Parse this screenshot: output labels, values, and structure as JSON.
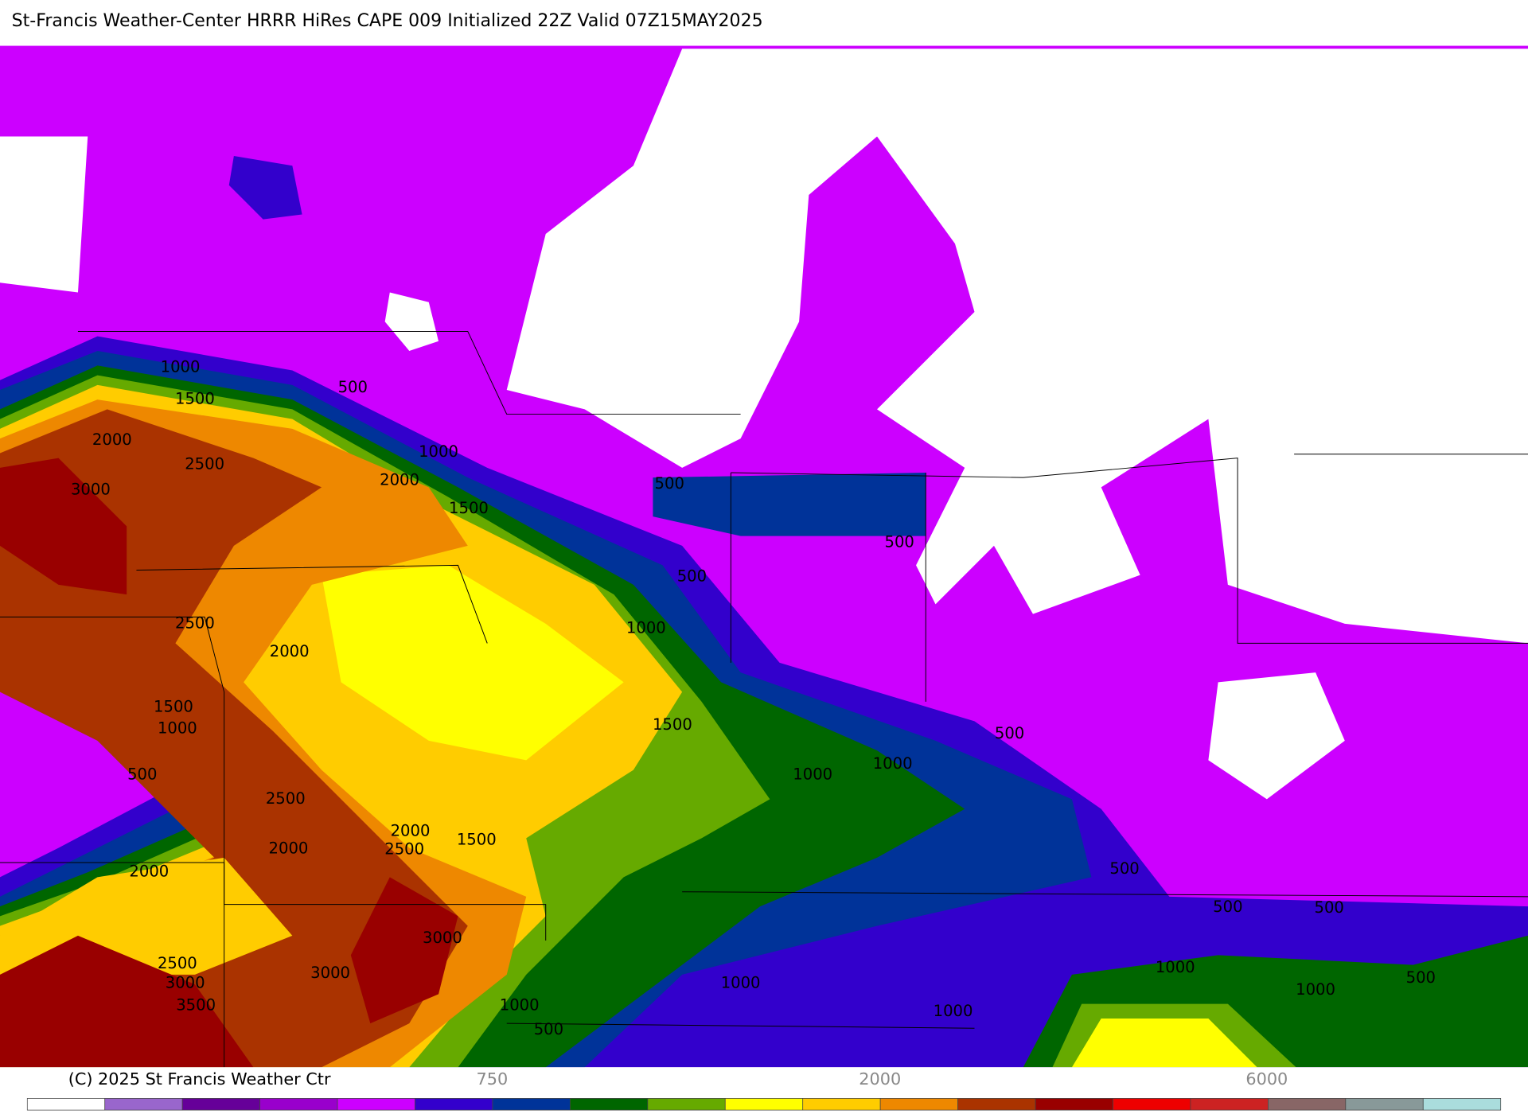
{
  "title": "St-Francis Weather-Center HRRR HiRes CAPE  009 Initialized  22Z Valid 07Z15MAY2025",
  "contour_labels": [
    "1000",
    "1500",
    "500",
    "2000",
    "2500",
    "1000",
    "3000",
    "2000",
    "1500",
    "500",
    "500",
    "500",
    "2500",
    "1000",
    "2000",
    "1500",
    "1000",
    "1500",
    "500",
    "1000",
    "500",
    "1000",
    "2500",
    "2000",
    "2500",
    "1500",
    "2000",
    "2000",
    "500",
    "500",
    "500",
    "3000",
    "2500",
    "1000",
    "3000",
    "3000",
    "1000",
    "1000",
    "500",
    "3500",
    "1000",
    "1000",
    "500"
  ],
  "colorbar": {
    "copyright": "(C) 2025 St Francis Weather Ctr",
    "labels": [
      "750",
      "2000",
      "6000"
    ],
    "colors": [
      "#ffffff",
      "#9966cc",
      "#660099",
      "#9900cc",
      "#cc00ff",
      "#3300cc",
      "#003399",
      "#006600",
      "#66aa00",
      "#ffff00",
      "#ffcc00",
      "#ee8800",
      "#aa3300",
      "#990000",
      "#ee0000",
      "#cc2222",
      "#886666",
      "#889999",
      "#aadddd"
    ]
  }
}
